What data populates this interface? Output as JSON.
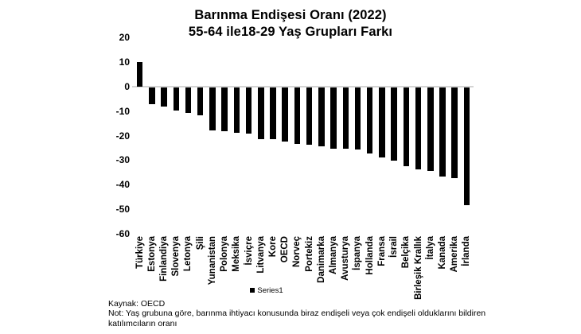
{
  "title": {
    "line1": "Barınma Endişesi Oranı (2022)",
    "line2": "55-64 ile18-29 Yaş Grupları Farkı"
  },
  "legend": {
    "label": "Series1",
    "marker_color": "#000000"
  },
  "footer": {
    "source": "Kaynak: OECD",
    "note_line1": "Not: Yaş grubuna göre, barınma ihtiyacı konusunda biraz endişeli veya çok endişeli olduklarını bildiren",
    "note_line2": "katılımcıların oranı"
  },
  "colors": {
    "bar": "#000000",
    "axis_line": "#d4d4d4",
    "text": "#000000",
    "background": "#ffffff"
  },
  "chart_data": {
    "type": "bar",
    "title": "Barınma Endişesi Oranı (2022) — 55-64 ile18-29 Yaş Grupları Farkı",
    "categories": [
      "Türkiye",
      "Estonya",
      "Finlandiya",
      "Slovenya",
      "Letonya",
      "Şili",
      "Yunanistan",
      "Polonya",
      "Meksika",
      "İsviçre",
      "Litvanya",
      "Kore",
      "OECD",
      "Norveç",
      "Portekiz",
      "Danimarka",
      "Almanya",
      "Avusturya",
      "İspanya",
      "Hollanda",
      "Fransa",
      "İsrail",
      "Belçika",
      "Birleşik Krallık",
      "İtalya",
      "Kanada",
      "Amerika",
      "İrlanda"
    ],
    "values": [
      10,
      -7,
      -8,
      -9.5,
      -10.5,
      -11.5,
      -17.5,
      -18,
      -18.5,
      -19,
      -21,
      -21,
      -22,
      -23,
      -23.5,
      -24,
      -25,
      -25,
      -25.5,
      -27,
      -28.5,
      -30,
      -32,
      -33.5,
      -34,
      -36.5,
      -37,
      -48
    ],
    "series_name": "Series1",
    "xlabel": "",
    "ylabel": "",
    "ylim": [
      -60,
      20
    ],
    "yticks": [
      20,
      10,
      0,
      -10,
      -20,
      -30,
      -40,
      -50,
      -60
    ],
    "grid": false,
    "legend_position": "bottom",
    "bar_color": "#000000"
  }
}
